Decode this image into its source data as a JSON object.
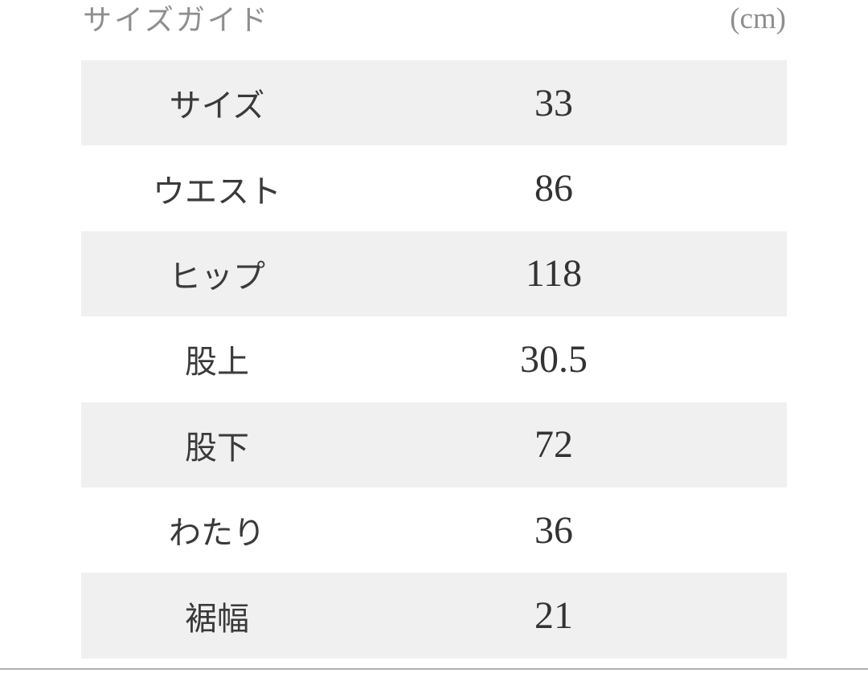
{
  "header": {
    "title": "サイズガイド",
    "unit": "(cm)"
  },
  "table": {
    "rows": [
      {
        "label": "サイズ",
        "value": "33"
      },
      {
        "label": "ウエスト",
        "value": "86"
      },
      {
        "label": "ヒップ",
        "value": "118"
      },
      {
        "label": "股上",
        "value": "30.5"
      },
      {
        "label": "股下",
        "value": "72"
      },
      {
        "label": "わたり",
        "value": "36"
      },
      {
        "label": "裾幅",
        "value": "21"
      }
    ]
  },
  "colors": {
    "row_stripe": "#f0f0f0",
    "row_white": "#ffffff",
    "title_text": "#8e8e8e",
    "label_text": "#3a3a3a",
    "value_text": "#333333",
    "divider": "#b0b0b0",
    "page_bg": "#ffffff"
  }
}
